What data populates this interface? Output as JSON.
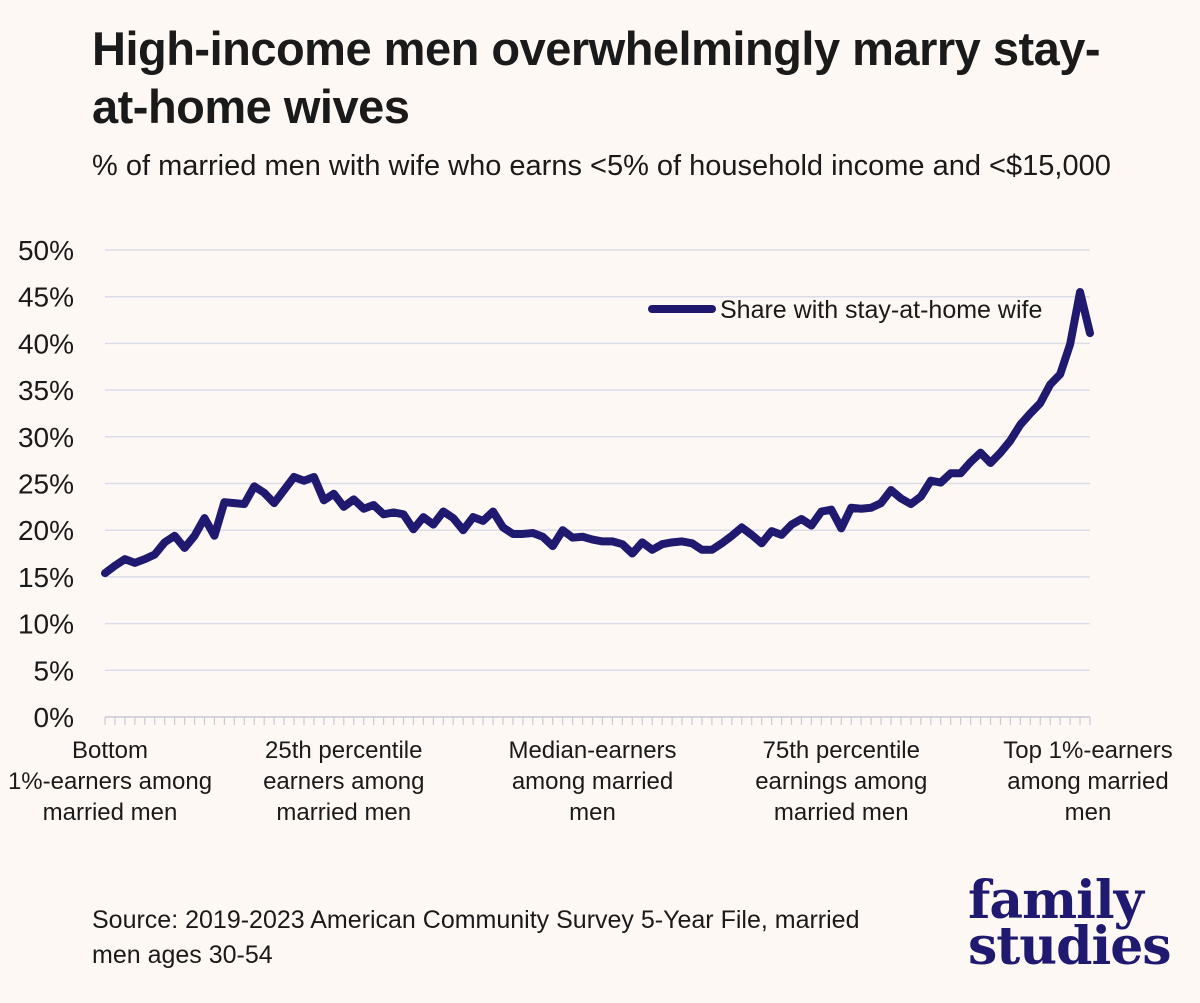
{
  "chart_data": {
    "type": "line",
    "title": "High-income men overwhelmingly marry stay-at-home wives",
    "subtitle": "% of married men with wife who earns <5% of household income and <$15,000",
    "xlabel": "",
    "ylabel": "",
    "ylim": [
      0,
      50
    ],
    "y_ticks": [
      "0%",
      "5%",
      "10%",
      "15%",
      "20%",
      "25%",
      "30%",
      "35%",
      "40%",
      "45%",
      "50%"
    ],
    "y_tick_values": [
      0,
      5,
      10,
      15,
      20,
      25,
      30,
      35,
      40,
      45,
      50
    ],
    "grid": true,
    "legend_position": "top-right",
    "x_category_labels": [
      {
        "x": 1,
        "label": "Bottom 1%-earners among married men"
      },
      {
        "x": 25,
        "label": "25th percentile earners among married men"
      },
      {
        "x": 50,
        "label": "Median-earners among married men"
      },
      {
        "x": 75,
        "label": "75th percentile earnings among married men"
      },
      {
        "x": 100,
        "label": "Top 1%-earners among married men"
      }
    ],
    "series": [
      {
        "name": "Share with stay-at-home wife",
        "color": "#1f1a70",
        "x": [
          1,
          2,
          3,
          4,
          5,
          6,
          7,
          8,
          9,
          10,
          11,
          12,
          13,
          14,
          15,
          16,
          17,
          18,
          19,
          20,
          21,
          22,
          23,
          24,
          25,
          26,
          27,
          28,
          29,
          30,
          31,
          32,
          33,
          34,
          35,
          36,
          37,
          38,
          39,
          40,
          41,
          42,
          43,
          44,
          45,
          46,
          47,
          48,
          49,
          50,
          51,
          52,
          53,
          54,
          55,
          56,
          57,
          58,
          59,
          60,
          61,
          62,
          63,
          64,
          65,
          66,
          67,
          68,
          69,
          70,
          71,
          72,
          73,
          74,
          75,
          76,
          77,
          78,
          79,
          80,
          81,
          82,
          83,
          84,
          85,
          86,
          87,
          88,
          89,
          90,
          91,
          92,
          93,
          94,
          95,
          96,
          97,
          98,
          99,
          100
        ],
        "values": [
          15.4,
          16.2,
          16.9,
          16.5,
          16.9,
          17.4,
          18.7,
          19.4,
          18.1,
          19.4,
          21.3,
          19.4,
          23.0,
          22.9,
          22.8,
          24.7,
          24.0,
          22.9,
          24.3,
          25.7,
          25.3,
          25.7,
          23.2,
          23.9,
          22.5,
          23.3,
          22.3,
          22.7,
          21.7,
          21.9,
          21.7,
          20.1,
          21.4,
          20.6,
          22.0,
          21.3,
          20.0,
          21.4,
          21.0,
          22.0,
          20.3,
          19.6,
          19.6,
          19.7,
          19.3,
          18.3,
          20.0,
          19.2,
          19.3,
          19.0,
          18.8,
          18.8,
          18.5,
          17.5,
          18.7,
          17.9,
          18.5,
          18.7,
          18.8,
          18.6,
          17.9,
          17.9,
          18.6,
          19.4,
          20.3,
          19.5,
          18.6,
          19.9,
          19.5,
          20.6,
          21.2,
          20.5,
          22.0,
          22.2,
          20.2,
          22.4,
          22.3,
          22.4,
          22.9,
          24.3,
          23.4,
          22.8,
          23.6,
          25.3,
          25.1,
          26.1,
          26.1,
          27.3,
          28.3,
          27.2,
          28.3,
          29.6,
          31.3,
          32.5,
          33.6,
          35.6,
          36.7,
          39.9,
          45.5,
          41.1
        ]
      }
    ],
    "source": "Source: 2019-2023 American Community Survey 5-Year File, married men ages 30-54",
    "logo": {
      "line1": "family",
      "line2": "studies"
    }
  }
}
